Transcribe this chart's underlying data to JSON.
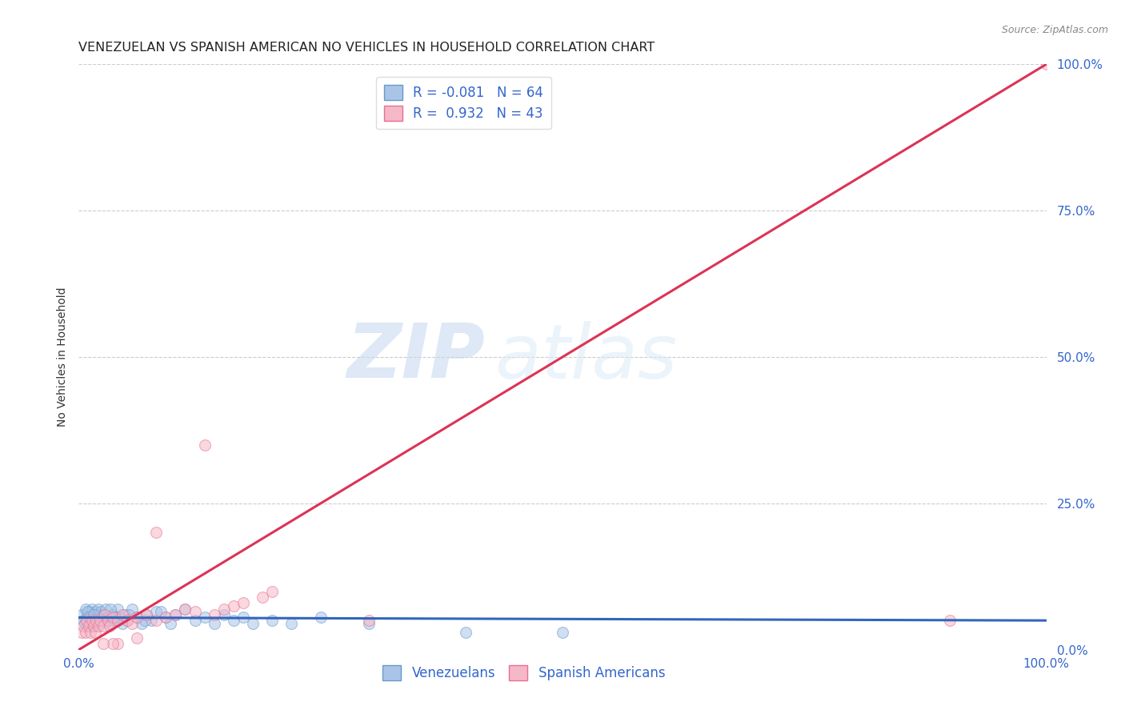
{
  "title": "VENEZUELAN VS SPANISH AMERICAN NO VEHICLES IN HOUSEHOLD CORRELATION CHART",
  "source": "Source: ZipAtlas.com",
  "ylabel": "No Vehicles in Household",
  "xlim": [
    0,
    1.0
  ],
  "ylim": [
    0,
    1.0
  ],
  "ytick_positions": [
    0.0,
    0.25,
    0.5,
    0.75,
    1.0
  ],
  "ytick_labels": [
    "0.0%",
    "25.0%",
    "50.0%",
    "75.0%",
    "100.0%"
  ],
  "xtick_positions": [
    0.0,
    1.0
  ],
  "xtick_labels": [
    "0.0%",
    "100.0%"
  ],
  "grid_color": "#cccccc",
  "background_color": "#ffffff",
  "watermark_text": "ZIP",
  "watermark_text2": "atlas",
  "venezuelan_color": "#aac4e8",
  "venezuelan_edge_color": "#6699cc",
  "spanish_color": "#f5b8c8",
  "spanish_edge_color": "#e87090",
  "venezuelan_line_color": "#3366bb",
  "spanish_line_color": "#dd3355",
  "legend_line1": "R = -0.081   N = 64",
  "legend_line2": "R =  0.932   N = 43",
  "bottom_legend_1": "Venezuelans",
  "bottom_legend_2": "Spanish Americans",
  "venezuelan_x": [
    0.003,
    0.005,
    0.007,
    0.008,
    0.009,
    0.01,
    0.011,
    0.012,
    0.013,
    0.014,
    0.015,
    0.016,
    0.017,
    0.018,
    0.019,
    0.02,
    0.021,
    0.022,
    0.023,
    0.025,
    0.027,
    0.028,
    0.03,
    0.032,
    0.035,
    0.037,
    0.04,
    0.042,
    0.045,
    0.048,
    0.05,
    0.055,
    0.06,
    0.065,
    0.07,
    0.075,
    0.08,
    0.09,
    0.1,
    0.11,
    0.12,
    0.13,
    0.14,
    0.15,
    0.16,
    0.17,
    0.18,
    0.2,
    0.22,
    0.25,
    0.006,
    0.009,
    0.011,
    0.015,
    0.024,
    0.033,
    0.038,
    0.052,
    0.068,
    0.085,
    0.095,
    0.3,
    0.4,
    0.5
  ],
  "venezuelan_y": [
    0.06,
    0.05,
    0.07,
    0.04,
    0.055,
    0.065,
    0.045,
    0.06,
    0.05,
    0.07,
    0.04,
    0.055,
    0.065,
    0.05,
    0.06,
    0.07,
    0.045,
    0.055,
    0.065,
    0.06,
    0.05,
    0.07,
    0.055,
    0.045,
    0.06,
    0.05,
    0.07,
    0.055,
    0.045,
    0.06,
    0.05,
    0.07,
    0.055,
    0.045,
    0.06,
    0.05,
    0.065,
    0.055,
    0.06,
    0.07,
    0.05,
    0.055,
    0.045,
    0.06,
    0.05,
    0.055,
    0.045,
    0.05,
    0.045,
    0.055,
    0.045,
    0.065,
    0.055,
    0.06,
    0.05,
    0.07,
    0.055,
    0.06,
    0.05,
    0.065,
    0.045,
    0.045,
    0.03,
    0.03
  ],
  "spanish_x": [
    0.003,
    0.005,
    0.007,
    0.008,
    0.01,
    0.012,
    0.014,
    0.015,
    0.017,
    0.018,
    0.02,
    0.022,
    0.025,
    0.027,
    0.03,
    0.032,
    0.035,
    0.04,
    0.045,
    0.05,
    0.055,
    0.06,
    0.07,
    0.08,
    0.09,
    0.1,
    0.11,
    0.12,
    0.14,
    0.15,
    0.16,
    0.17,
    0.19,
    0.2,
    0.13,
    0.08,
    0.06,
    0.04,
    0.035,
    0.025,
    0.3,
    0.9,
    1.0
  ],
  "spanish_y": [
    0.03,
    0.04,
    0.03,
    0.05,
    0.04,
    0.03,
    0.05,
    0.04,
    0.03,
    0.05,
    0.04,
    0.05,
    0.04,
    0.06,
    0.05,
    0.04,
    0.055,
    0.05,
    0.06,
    0.05,
    0.045,
    0.055,
    0.06,
    0.05,
    0.055,
    0.06,
    0.07,
    0.065,
    0.06,
    0.07,
    0.075,
    0.08,
    0.09,
    0.1,
    0.35,
    0.2,
    0.02,
    0.01,
    0.01,
    0.01,
    0.05,
    0.05,
    1.0
  ],
  "marker_size": 100,
  "marker_alpha": 0.55,
  "line_width": 2.2,
  "title_fontsize": 11.5,
  "label_fontsize": 10,
  "tick_fontsize": 11,
  "legend_fontsize": 12,
  "source_fontsize": 9,
  "axis_label_color": "#333333",
  "tick_color": "#3366cc",
  "title_color": "#222222",
  "source_color": "#888888"
}
